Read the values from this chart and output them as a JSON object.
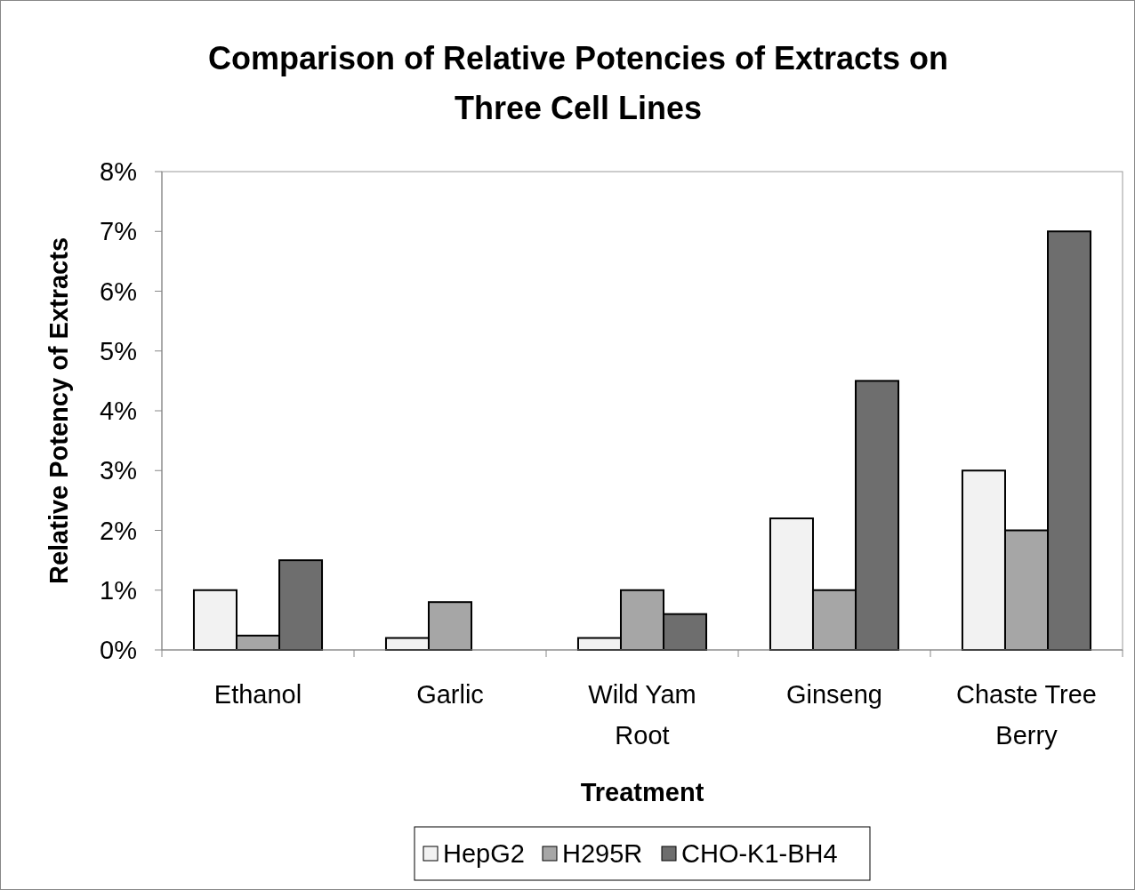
{
  "chart_data": {
    "type": "bar",
    "title": "Comparison of Relative Potencies of Extracts on Three Cell Lines",
    "xlabel": "Treatment",
    "ylabel": "Relative Potency of Extracts",
    "categories": [
      "Ethanol",
      "Garlic",
      "Wild Yam Root",
      "Ginseng",
      "Chaste Tree Berry"
    ],
    "series": [
      {
        "name": "HepG2",
        "color": "#f2f2f2",
        "values": [
          1.0,
          0.2,
          0.2,
          2.2,
          3.0
        ]
      },
      {
        "name": "H295R",
        "color": "#a6a6a6",
        "values": [
          0.24,
          0.8,
          1.0,
          1.0,
          2.0
        ]
      },
      {
        "name": "CHO-K1-BH4",
        "color": "#6e6e6e",
        "values": [
          1.5,
          0,
          0.6,
          4.5,
          7.0
        ]
      }
    ],
    "ylim": [
      0,
      8
    ],
    "yticks": [
      {
        "value": 0,
        "label": "0%"
      },
      {
        "value": 1,
        "label": "1%"
      },
      {
        "value": 2,
        "label": "2%"
      },
      {
        "value": 3,
        "label": "3%"
      },
      {
        "value": 4,
        "label": "4%"
      },
      {
        "value": 5,
        "label": "5%"
      },
      {
        "value": 6,
        "label": "6%"
      },
      {
        "value": 7,
        "label": "7%"
      },
      {
        "value": 8,
        "label": "8%"
      }
    ],
    "grid": false,
    "legend": "bottom"
  }
}
